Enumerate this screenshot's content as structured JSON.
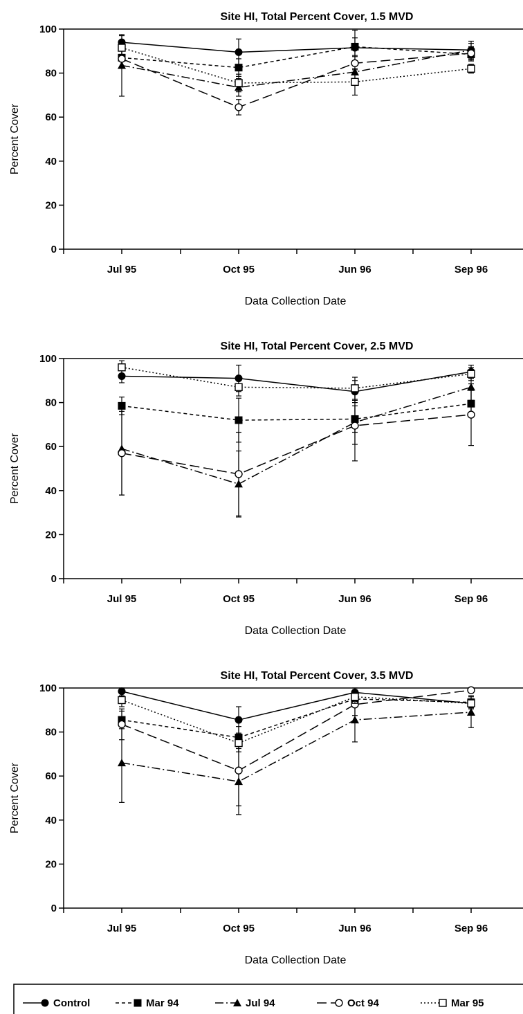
{
  "chart_data": [
    {
      "type": "line",
      "title": "Site HI, Total Percent Cover, 1.5 MVD",
      "xlabel": "Data Collection Date",
      "ylabel": "Percent Cover",
      "categories": [
        "Jul 95",
        "Oct 95",
        "Jun 96",
        "Sep 96"
      ],
      "ylim": [
        0,
        100
      ],
      "yticks": [
        0,
        20,
        40,
        60,
        80,
        100
      ],
      "series": [
        {
          "name": "Control",
          "values": [
            94,
            89.5,
            91.5,
            90.5
          ],
          "err": [
            3,
            6,
            8,
            4
          ]
        },
        {
          "name": "Mar 94",
          "values": [
            87,
            82.5,
            92,
            88.5
          ],
          "err": [
            4,
            4,
            4,
            3
          ]
        },
        {
          "name": "Jul 94",
          "values": [
            83.5,
            73.5,
            80.5,
            90.5
          ],
          "err": [
            14,
            4,
            4,
            3
          ]
        },
        {
          "name": "Oct 94",
          "values": [
            86.5,
            64.5,
            84.5,
            89
          ],
          "err": [
            4,
            3.5,
            3,
            3
          ]
        },
        {
          "name": "Mar 95",
          "values": [
            91.5,
            75.5,
            76,
            82
          ],
          "err": [
            3,
            4,
            6,
            2
          ]
        }
      ]
    },
    {
      "type": "line",
      "title": "Site HI, Total Percent Cover, 2.5 MVD",
      "xlabel": "Data Collection Date",
      "ylabel": "Percent Cover",
      "categories": [
        "Jul 95",
        "Oct 95",
        "Jun 96",
        "Sep 96"
      ],
      "ylim": [
        0,
        100
      ],
      "yticks": [
        0,
        20,
        40,
        60,
        80,
        100
      ],
      "series": [
        {
          "name": "Control",
          "values": [
            92,
            91,
            85,
            94
          ],
          "err": [
            3,
            6,
            5,
            3
          ]
        },
        {
          "name": "Mar 94",
          "values": [
            78.5,
            72,
            72.5,
            79.5
          ],
          "err": [
            4,
            10,
            6,
            6
          ]
        },
        {
          "name": "Jul 94",
          "values": [
            59,
            43,
            71,
            87
          ],
          "err": [
            21,
            15,
            10,
            6
          ]
        },
        {
          "name": "Oct 94",
          "values": [
            57,
            47.5,
            69.5,
            74.5
          ],
          "err": [
            19,
            19,
            16,
            14
          ]
        },
        {
          "name": "Mar 95",
          "values": [
            96,
            87,
            86.5,
            93
          ],
          "err": [
            3,
            4,
            5,
            3
          ]
        }
      ]
    },
    {
      "type": "line",
      "title": "Site HI, Total Percent Cover, 3.5 MVD",
      "xlabel": "Data Collection Date",
      "ylabel": "Percent Cover",
      "categories": [
        "Jul 95",
        "Oct 95",
        "Jun 96",
        "Sep 96"
      ],
      "ylim": [
        0,
        100
      ],
      "yticks": [
        0,
        20,
        40,
        60,
        80,
        100
      ],
      "series": [
        {
          "name": "Control",
          "values": [
            98.5,
            85.5,
            98,
            93
          ],
          "err": [
            2,
            6,
            2,
            2
          ]
        },
        {
          "name": "Mar 94",
          "values": [
            85.5,
            77.5,
            95,
            93.5
          ],
          "err": [
            4,
            5,
            3,
            3
          ]
        },
        {
          "name": "Jul 94",
          "values": [
            66,
            57.5,
            85.5,
            89
          ],
          "err": [
            18,
            15,
            10,
            7
          ]
        },
        {
          "name": "Oct 94",
          "values": [
            83.5,
            62.5,
            92.5,
            99
          ],
          "err": [
            7,
            16,
            5,
            1
          ]
        },
        {
          "name": "Mar 95",
          "values": [
            94.5,
            75,
            96,
            93
          ],
          "err": [
            3,
            4,
            3,
            2
          ]
        }
      ]
    }
  ],
  "legend": {
    "placement": "bottom",
    "items": [
      {
        "label": "Control",
        "marker": "filled-circle",
        "dash": "solid"
      },
      {
        "label": "Mar 94",
        "marker": "filled-square",
        "dash": "short-dash"
      },
      {
        "label": "Jul 94",
        "marker": "filled-triangle",
        "dash": "dash-dot"
      },
      {
        "label": "Oct 94",
        "marker": "open-circle",
        "dash": "long-dash"
      },
      {
        "label": "Mar 95",
        "marker": "open-square",
        "dash": "dotted"
      }
    ]
  }
}
